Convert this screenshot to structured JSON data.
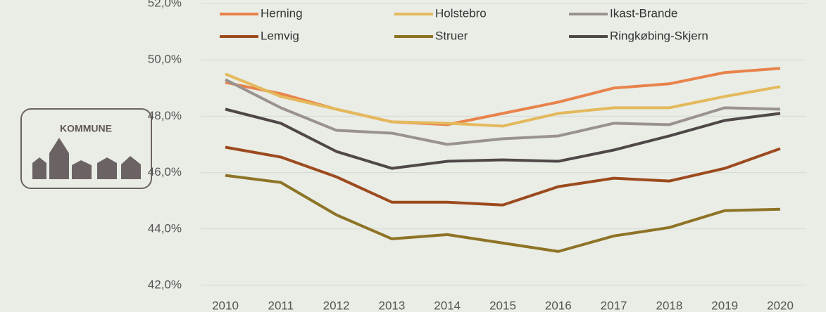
{
  "logo_text": "KOMMUNE",
  "chart_data": {
    "type": "line",
    "categories": [
      "2010",
      "2011",
      "2012",
      "2013",
      "2014",
      "2015",
      "2016",
      "2017",
      "2018",
      "2019",
      "2020"
    ],
    "series": [
      {
        "name": "Herning",
        "color": "#e8834b",
        "values": [
          49.2,
          48.8,
          48.25,
          47.8,
          47.7,
          48.1,
          48.5,
          49.0,
          49.15,
          49.55,
          49.7
        ]
      },
      {
        "name": "Holstebro",
        "color": "#e4b95c",
        "values": [
          49.5,
          48.7,
          48.25,
          47.8,
          47.75,
          47.65,
          48.1,
          48.3,
          48.3,
          48.7,
          49.05
        ]
      },
      {
        "name": "Ikast-Brande",
        "color": "#9a9290",
        "values": [
          49.3,
          48.3,
          47.5,
          47.4,
          47.0,
          47.2,
          47.3,
          47.75,
          47.7,
          48.3,
          48.25
        ]
      },
      {
        "name": "Lemvig",
        "color": "#9c4a1e",
        "values": [
          46.9,
          46.55,
          45.85,
          44.95,
          44.95,
          44.85,
          45.5,
          45.8,
          45.7,
          46.15,
          46.85
        ]
      },
      {
        "name": "Struer",
        "color": "#8e7326",
        "values": [
          45.9,
          45.65,
          44.5,
          43.65,
          43.8,
          43.5,
          43.2,
          43.75,
          44.05,
          44.65,
          44.7
        ]
      },
      {
        "name": "Ringkøbing-Skjern",
        "color": "#4f4748",
        "values": [
          48.25,
          47.75,
          46.75,
          46.15,
          46.4,
          46.45,
          46.4,
          46.8,
          47.3,
          47.85,
          48.1
        ]
      }
    ],
    "ylim": [
      42,
      52
    ],
    "yticks": [
      {
        "value": 42,
        "label": "42,0%"
      },
      {
        "value": 44,
        "label": "44,0%"
      },
      {
        "value": 46,
        "label": "46,0%"
      },
      {
        "value": 48,
        "label": "48,0%"
      },
      {
        "value": 50,
        "label": "50,0%"
      },
      {
        "value": 52,
        "label": "52,0%"
      }
    ],
    "grid": true
  }
}
